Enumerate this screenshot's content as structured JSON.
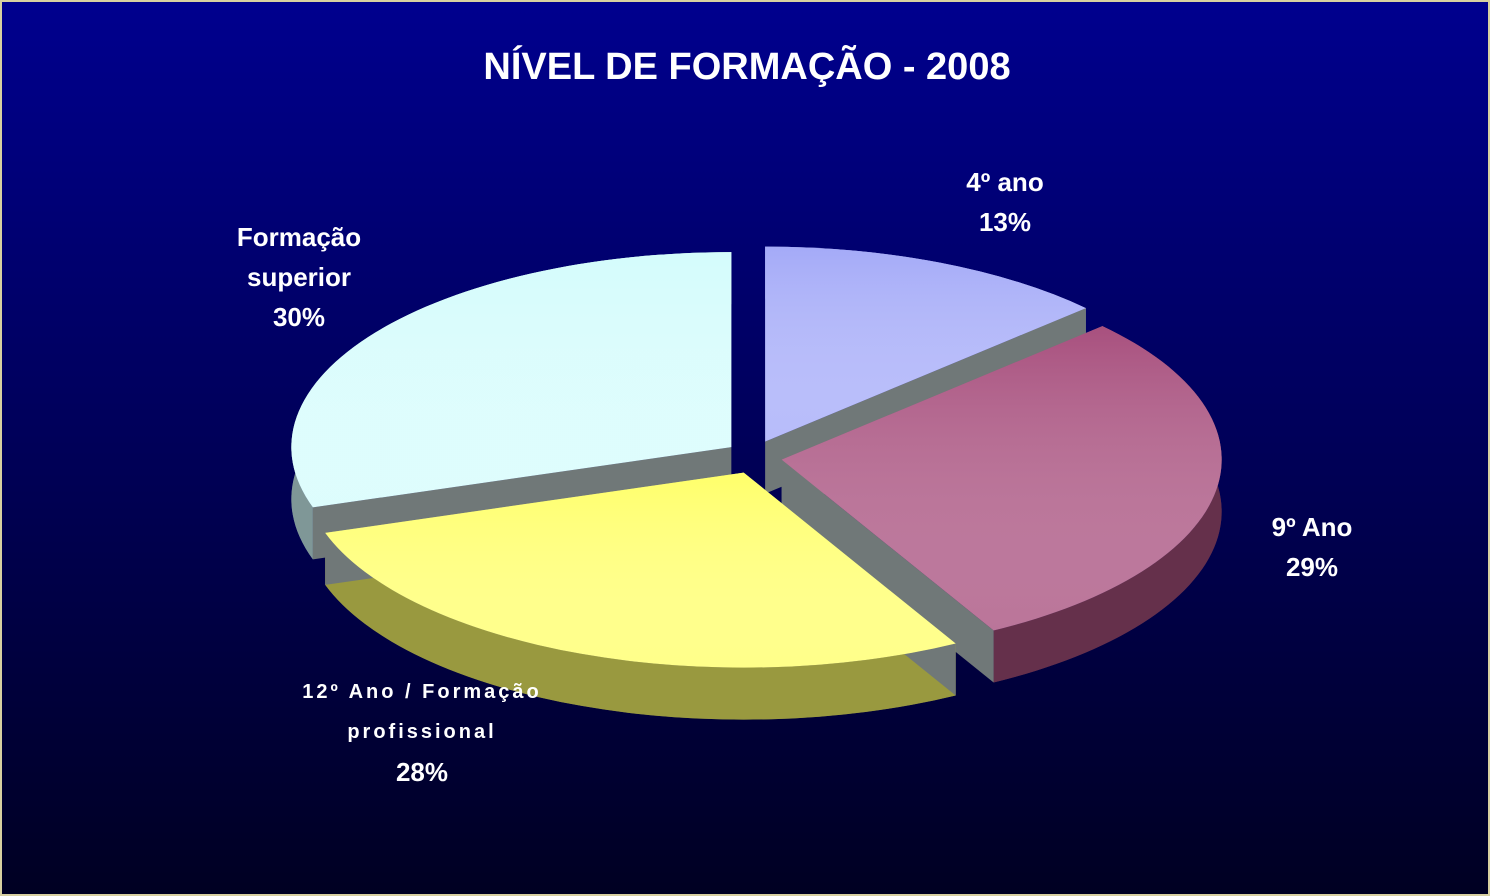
{
  "chart_data": {
    "type": "pie",
    "title": "NÍVEL DE FORMAÇÃO  - 2008",
    "categories": [
      "4º ano",
      "9º Ano",
      "12º Ano / Formação profissional",
      "Formação superior"
    ],
    "values": [
      13,
      29,
      28,
      30
    ],
    "value_labels": [
      "13%",
      "29%",
      "28%",
      "30%"
    ],
    "colors": [
      "#a4aaf8",
      "#a8507e",
      "#ffff6a",
      "#d4fcfc"
    ]
  }
}
